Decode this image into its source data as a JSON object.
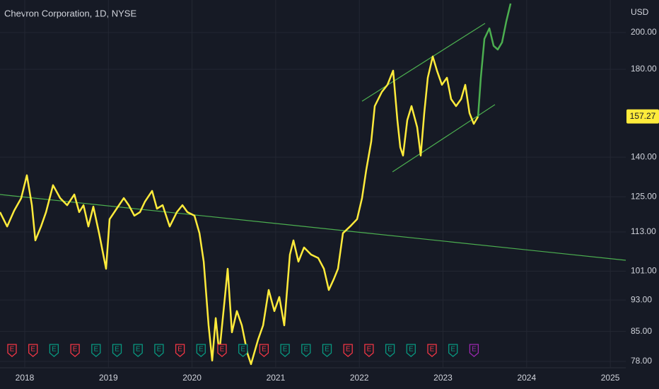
{
  "chart_data": {
    "type": "line",
    "title": "Chevron Corporation, 1D, NYSE",
    "currency": "USD",
    "log_scale": true,
    "grid": true,
    "xlim": [
      2017.704,
      2025.185
    ],
    "ylim": [
      76.6,
      219.5
    ],
    "xticks": [
      2018,
      2019,
      2020,
      2021,
      2022,
      2023,
      2024,
      2025
    ],
    "yticks": [
      {
        "value": 78,
        "label": "78.00"
      },
      {
        "value": 85,
        "label": "85.00"
      },
      {
        "value": 93,
        "label": "93.00"
      },
      {
        "value": 101,
        "label": "101.00"
      },
      {
        "value": 113,
        "label": "113.00"
      },
      {
        "value": 125,
        "label": "125.00"
      },
      {
        "value": 140,
        "label": "140.00"
      },
      {
        "value": 180,
        "label": "180.00"
      },
      {
        "value": 200,
        "label": "200.00"
      }
    ],
    "last_price": 157.27,
    "last_price_color": "#ffeb3b",
    "earnings_marker": "E",
    "series": [
      {
        "color": "#ffeb3b",
        "x": [
          2017.704,
          2017.789,
          2017.873,
          2017.958,
          2018.025,
          2018.085,
          2018.127,
          2018.194,
          2018.254,
          2018.338,
          2018.423,
          2018.507,
          2018.592,
          2018.651,
          2018.702,
          2018.761,
          2018.82,
          2018.888,
          2018.972,
          2019.014,
          2019.099,
          2019.184,
          2019.243,
          2019.31,
          2019.378,
          2019.438,
          2019.522,
          2019.581,
          2019.648,
          2019.733,
          2019.818,
          2019.885,
          2019.944,
          2020.029,
          2020.089,
          2020.139,
          2020.198,
          2020.241,
          2020.283,
          2020.325,
          2020.393,
          2020.426,
          2020.477,
          2020.536,
          2020.595,
          2020.663,
          2020.705,
          2020.79,
          2020.849,
          2020.916,
          2020.984,
          2021.043,
          2021.102,
          2021.17,
          2021.212,
          2021.271,
          2021.339,
          2021.423,
          2021.508,
          2021.576,
          2021.635,
          2021.694,
          2021.745,
          2021.804,
          2021.889,
          2021.973,
          2022.032,
          2022.083,
          2022.142,
          2022.184,
          2022.269,
          2022.336,
          2022.404,
          2022.455,
          2022.489,
          2022.522,
          2022.573,
          2022.624,
          2022.691,
          2022.734,
          2022.776,
          2022.818,
          2022.877,
          2022.928,
          2022.987,
          2023.047,
          2023.097,
          2023.156,
          2023.216,
          2023.266,
          2023.317,
          2023.368,
          2023.419
        ],
        "values": [
          119.6,
          114.8,
          120.1,
          124.5,
          132.9,
          122.0,
          110.3,
          114.8,
          119.6,
          129.2,
          124.5,
          122.0,
          125.8,
          119.6,
          122.0,
          114.8,
          121.5,
          112.6,
          101.7,
          117.2,
          120.8,
          124.5,
          122.0,
          118.4,
          119.6,
          123.3,
          127.1,
          120.8,
          122.0,
          114.8,
          119.6,
          122.0,
          119.6,
          118.4,
          112.6,
          103.8,
          86.5,
          78.2,
          88.3,
          79.8,
          93.8,
          101.7,
          84.8,
          90.1,
          86.5,
          79.8,
          77.4,
          83.1,
          86.5,
          95.7,
          90.1,
          93.8,
          86.5,
          105.9,
          110.3,
          103.8,
          108.1,
          105.9,
          104.9,
          101.7,
          95.7,
          98.7,
          101.7,
          112.6,
          114.8,
          117.2,
          124.5,
          135.0,
          146.4,
          162.0,
          168.7,
          172.2,
          179.3,
          155.6,
          144.0,
          140.6,
          155.6,
          162.0,
          152.5,
          140.6,
          158.8,
          175.7,
          186.7,
          179.3,
          172.2,
          175.7,
          165.3,
          162.0,
          165.3,
          172.2,
          158.8,
          154.0,
          157.2
        ]
      },
      {
        "color": "#4caf50",
        "x": [
          2023.419,
          2023.452,
          2023.495,
          2023.554,
          2023.605,
          2023.655,
          2023.706,
          2023.757,
          2023.808
        ],
        "values": [
          157.2,
          175.7,
          196.4,
          202.4,
          192.5,
          190.5,
          194.4,
          206.6,
          217.3
        ]
      }
    ],
    "trendlines": [
      {
        "color": "#4caf50",
        "x": [
          2017.704,
          2025.185
        ],
        "values": [
          125.8,
          104.2
        ]
      },
      {
        "color": "#4caf50",
        "x": [
          2022.032,
          2023.503
        ],
        "values": [
          164.3,
          205.3
        ]
      },
      {
        "color": "#4caf50",
        "x": [
          2022.396,
          2023.621
        ],
        "values": [
          134.2,
          162.7
        ]
      }
    ]
  }
}
